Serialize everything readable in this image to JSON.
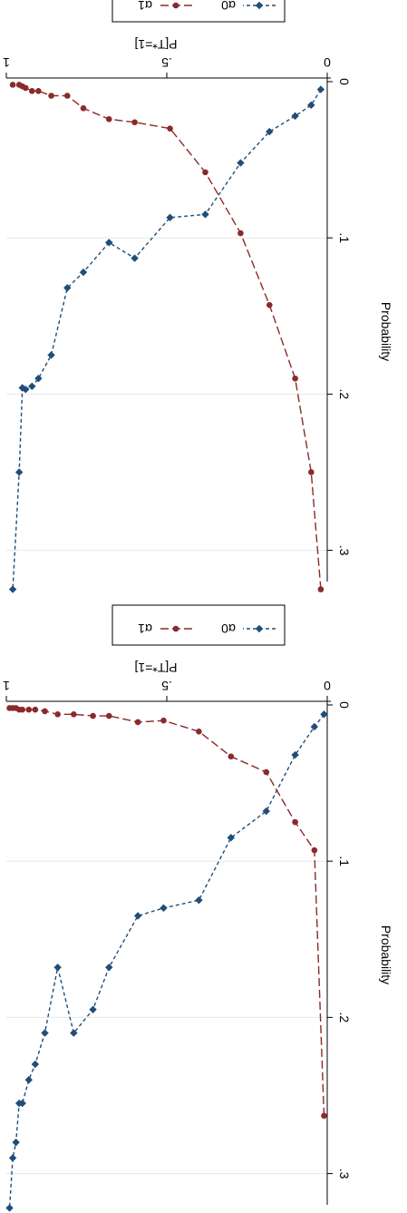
{
  "chart_data": [
    {
      "type": "line",
      "xlabel": "P[T*=1]",
      "ylabel": "Probability",
      "xlim": [
        0,
        1
      ],
      "ylim": [
        0,
        0.32
      ],
      "xticks": [
        {
          "v": 0,
          "label": "0"
        },
        {
          "v": 0.5,
          "label": ".5"
        },
        {
          "v": 1,
          "label": "1"
        }
      ],
      "yticks": [
        {
          "v": 0,
          "label": "0"
        },
        {
          "v": 0.1,
          "label": ".1"
        },
        {
          "v": 0.2,
          "label": ".2"
        },
        {
          "v": 0.3,
          "label": ".3"
        }
      ],
      "grid": true,
      "legend_position": "bottom",
      "series": [
        {
          "name": "α0",
          "color": "#1f4e79",
          "marker": "diamond",
          "dash": "dashed",
          "x": [
            0.02,
            0.05,
            0.1,
            0.18,
            0.27,
            0.38,
            0.49,
            0.6,
            0.68,
            0.76,
            0.81,
            0.86,
            0.9,
            0.92,
            0.94,
            0.95,
            0.96,
            0.98
          ],
          "y": [
            0.005,
            0.015,
            0.022,
            0.032,
            0.052,
            0.085,
            0.087,
            0.113,
            0.103,
            0.122,
            0.132,
            0.175,
            0.19,
            0.195,
            0.197,
            0.196,
            0.25,
            0.325
          ]
        },
        {
          "name": "α1",
          "color": "#8b2a2a",
          "marker": "circle",
          "dash": "longdash",
          "x": [
            0.02,
            0.05,
            0.1,
            0.18,
            0.27,
            0.38,
            0.49,
            0.6,
            0.68,
            0.76,
            0.81,
            0.86,
            0.9,
            0.92,
            0.94,
            0.95,
            0.96,
            0.98
          ],
          "y": [
            0.325,
            0.25,
            0.19,
            0.143,
            0.097,
            0.058,
            0.03,
            0.026,
            0.024,
            0.017,
            0.009,
            0.009,
            0.006,
            0.006,
            0.004,
            0.003,
            0.002,
            0.002
          ]
        }
      ]
    },
    {
      "type": "line",
      "xlabel": "P[T*=1]",
      "ylabel": "Probability",
      "xlim": [
        0,
        1
      ],
      "ylim": [
        0,
        0.32
      ],
      "xticks": [
        {
          "v": 0,
          "label": "0"
        },
        {
          "v": 0.5,
          "label": ".5"
        },
        {
          "v": 1,
          "label": "1"
        }
      ],
      "yticks": [
        {
          "v": 0,
          "label": "0"
        },
        {
          "v": 0.1,
          "label": ".1"
        },
        {
          "v": 0.2,
          "label": ".2"
        },
        {
          "v": 0.3,
          "label": ".3"
        }
      ],
      "grid": true,
      "legend_position": "bottom",
      "series": [
        {
          "name": "α0",
          "color": "#1f4e79",
          "marker": "diamond",
          "dash": "dashed",
          "x": [
            0.01,
            0.04,
            0.1,
            0.19,
            0.3,
            0.4,
            0.51,
            0.59,
            0.68,
            0.73,
            0.79,
            0.84,
            0.88,
            0.91,
            0.93,
            0.95,
            0.96,
            0.97,
            0.98,
            0.99
          ],
          "y": [
            0.006,
            0.014,
            0.032,
            0.068,
            0.085,
            0.125,
            0.13,
            0.135,
            0.168,
            0.195,
            0.21,
            0.168,
            0.21,
            0.23,
            0.24,
            0.255,
            0.255,
            0.28,
            0.29,
            0.322
          ]
        },
        {
          "name": "α1",
          "color": "#8b2a2a",
          "marker": "circle",
          "dash": "longdash",
          "x": [
            0.01,
            0.04,
            0.1,
            0.19,
            0.3,
            0.4,
            0.51,
            0.59,
            0.68,
            0.73,
            0.79,
            0.84,
            0.88,
            0.91,
            0.93,
            0.95,
            0.96,
            0.97,
            0.98,
            0.99
          ],
          "y": [
            0.263,
            0.093,
            0.075,
            0.043,
            0.033,
            0.017,
            0.01,
            0.011,
            0.007,
            0.007,
            0.006,
            0.006,
            0.004,
            0.003,
            0.003,
            0.003,
            0.003,
            0.002,
            0.002,
            0.002
          ]
        }
      ]
    }
  ]
}
